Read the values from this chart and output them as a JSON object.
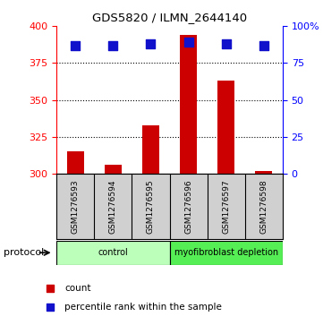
{
  "title": "GDS5820 / ILMN_2644140",
  "samples": [
    "GSM1276593",
    "GSM1276594",
    "GSM1276595",
    "GSM1276596",
    "GSM1276597",
    "GSM1276598"
  ],
  "counts": [
    315,
    306,
    333,
    394,
    363,
    302
  ],
  "percentile_ranks": [
    87,
    87,
    88,
    89,
    88,
    87
  ],
  "ylim_left": [
    300,
    400
  ],
  "yticks_left": [
    300,
    325,
    350,
    375,
    400
  ],
  "ylim_right": [
    0,
    100
  ],
  "yticks_right": [
    0,
    25,
    50,
    75,
    100
  ],
  "ytick_labels_right": [
    "0",
    "25",
    "50",
    "75",
    "100%"
  ],
  "bar_color": "#cc0000",
  "dot_color": "#1111cc",
  "bar_width": 0.45,
  "dot_size": 45,
  "groups": [
    {
      "label": "control",
      "indices": [
        0,
        1,
        2
      ],
      "color": "#bbffbb"
    },
    {
      "label": "myofibroblast depletion",
      "indices": [
        3,
        4,
        5
      ],
      "color": "#55ee55"
    }
  ],
  "protocol_label": "protocol",
  "legend_count_label": "count",
  "legend_percentile_label": "percentile rank within the sample",
  "grid_color": "black",
  "background_color": "#ffffff",
  "label_area_color": "#d0d0d0"
}
